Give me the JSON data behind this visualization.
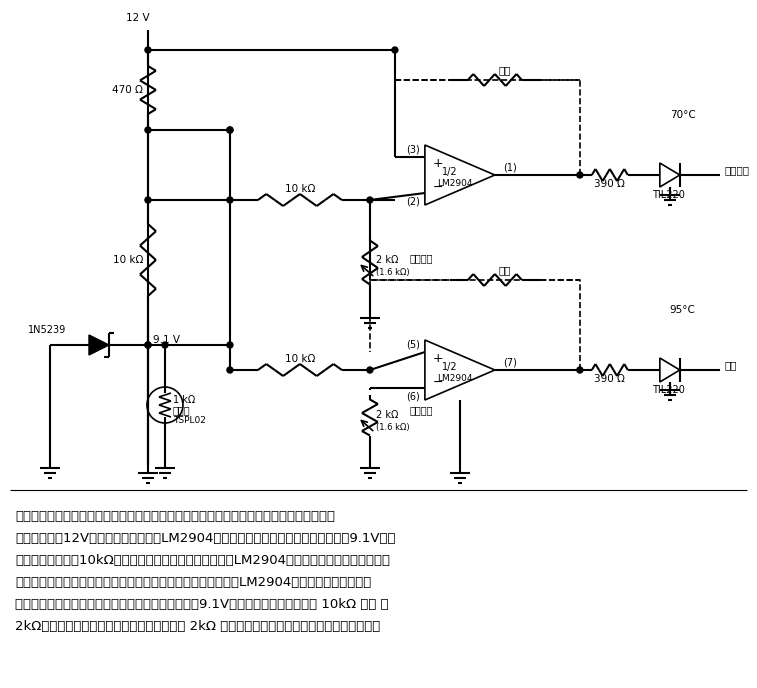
{
  "title": "",
  "background_color": "#ffffff",
  "text_color": "#000000",
  "circuit_description_lines": [
    "当达到两种不同的水温时，本电路能使发光二极管发光，从而指示两种不同水温的断路点。",
    "此电路是以由12V汽车电源系统供电的LM2904双重运算放大器为主制成的。在地与＋9.1V接点",
    "之间，热敏电阵与10kΩ的电阵串联。热敏电阵上端连接到LM2904的两个非反相输入端。当热敏",
    "电阵的阵值随温度而改变时，这两个输入端的电压亦随之改变。LM2904的每一反相输入端都有",
    "一个基准电压，即断路阈值电压，这一基准电压是由9.1V稳定电压两端之间串联的 10kΩ 电阵 和",
    "2kΩ位电器来调定。调节每个运算放大器中的 2kΩ 位电器，就可重新校准或调定这两个断路点，"
  ],
  "font_size_chinese": 9.5,
  "font_size_labels": 7.5,
  "font_size_small": 7
}
